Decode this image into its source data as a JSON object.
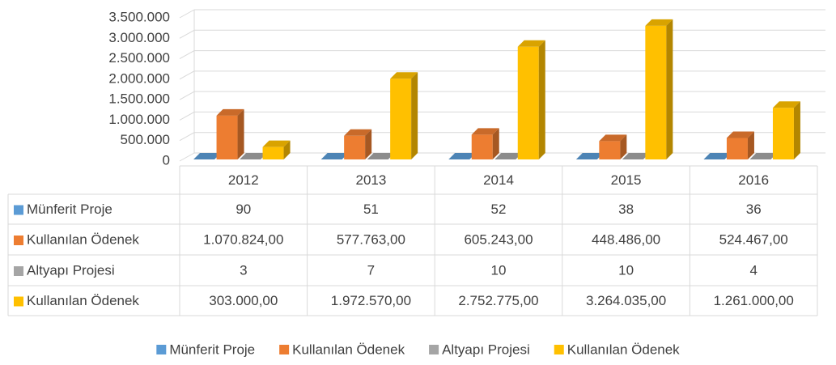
{
  "chart_data": {
    "type": "bar",
    "categories": [
      "2012",
      "2013",
      "2014",
      "2015",
      "2016"
    ],
    "series": [
      {
        "name": "Münferit Proje",
        "color": "#5b9bd5",
        "values": [
          90,
          51,
          52,
          38,
          36
        ]
      },
      {
        "name": "Kullanılan Ödenek",
        "color": "#ed7d31",
        "values": [
          1070824,
          577763,
          605243,
          448486,
          524467
        ],
        "value_labels": [
          "1.070.824,00",
          "577.763,00",
          "605.243,00",
          "448.486,00",
          "524.467,00"
        ]
      },
      {
        "name": "Altyapı Projesi",
        "color": "#a5a5a5",
        "values": [
          3,
          7,
          10,
          10,
          4
        ]
      },
      {
        "name": "Kullanılan Ödenek",
        "color": "#ffc000",
        "values": [
          303000,
          1972570,
          2752775,
          3264035,
          1261000
        ],
        "value_labels": [
          "303.000,00",
          "1.972.570,00",
          "2.752.775,00",
          "3.264.035,00",
          "1.261.000,00"
        ]
      }
    ],
    "ylim": [
      0,
      3500000
    ],
    "yticks": [
      0,
      {
        "value": 500000,
        "label": "500.000"
      },
      {
        "value": 1000000,
        "label": "1.000.000"
      },
      {
        "value": 1500000,
        "label": "1.500.000"
      },
      {
        "value": 2000000,
        "label": "2.000.000"
      },
      {
        "value": 2500000,
        "label": "2.500.000"
      },
      {
        "value": 3000000,
        "label": "3.000.000"
      },
      {
        "value": 3500000,
        "label": "3.500.000"
      }
    ],
    "grid": true,
    "legend": "bottom"
  }
}
